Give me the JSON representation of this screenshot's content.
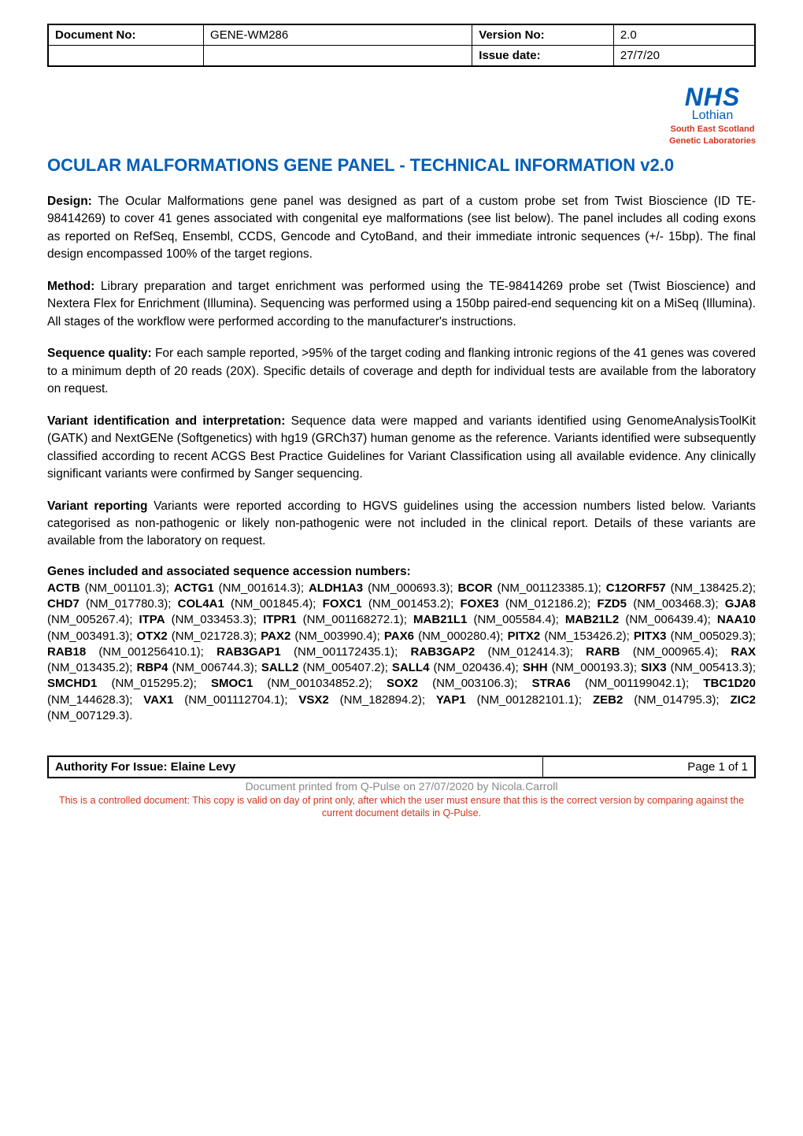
{
  "header": {
    "doc_no_label": "Document No:",
    "doc_no": "GENE-WM286",
    "version_no_label": "Version No:",
    "version_no": "2.0",
    "issue_date_label": "Issue date:",
    "issue_date": "27/7/20"
  },
  "logo": {
    "nhs": "NHS",
    "lothian": "Lothian",
    "sub1": "South East Scotland",
    "sub2": "Genetic Laboratories",
    "nhs_color": "#005eb8",
    "sub_color": "#d4351c"
  },
  "title": "OCULAR MALFORMATIONS GENE PANEL - TECHNICAL INFORMATION  v2.0",
  "sections": {
    "design_label": "Design:",
    "design_text": " The Ocular Malformations gene panel was designed as part of a custom probe set from Twist Bioscience (ID TE-98414269) to cover 41 genes associated with congenital eye malformations (see list below). The panel includes all coding exons as reported on RefSeq, Ensembl, CCDS, Gencode and CytoBand, and their immediate intronic sequences (+/- 15bp). The final design encompassed 100% of the target regions.",
    "method_label": "Method:",
    "method_text": " Library preparation and target enrichment was performed using the TE-98414269 probe set (Twist Bioscience) and Nextera Flex for Enrichment (Illumina). Sequencing was performed using a 150bp paired-end sequencing kit on a MiSeq (Illumina). All stages of the workflow were performed according to the manufacturer's instructions.",
    "seq_label": "Sequence quality:",
    "seq_text": " For each sample reported, >95% of the target coding and flanking intronic regions of the 41 genes was covered to a minimum depth of 20 reads (20X). Specific details of coverage and depth for individual tests are available from the laboratory on request.",
    "variant_id_label": "Variant identification and interpretation:",
    "variant_id_text": " Sequence data were mapped and variants identified using GenomeAnalysisToolKit (GATK) and NextGENe (Softgenetics) with hg19 (GRCh37) human genome as the reference. Variants identified were subsequently classified according to recent ACGS Best Practice Guidelines for Variant Classification using all available evidence. Any clinically significant variants were confirmed by Sanger sequencing.",
    "variant_rep_label": "Variant reporting",
    "variant_rep_text": " Variants were reported according to HGVS guidelines using the accession numbers listed below. Variants categorised as non-pathogenic or likely non-pathogenic were not included in the clinical report. Details of these variants are available from the laboratory on request."
  },
  "genes_heading": "Genes included and associated sequence accession numbers:",
  "genes": [
    {
      "g": "ACTB",
      "a": "(NM_001101.3)"
    },
    {
      "g": "ACTG1",
      "a": "(NM_001614.3)"
    },
    {
      "g": "ALDH1A3",
      "a": "(NM_000693.3)"
    },
    {
      "g": "BCOR",
      "a": "(NM_001123385.1)"
    },
    {
      "g": "C12ORF57",
      "a": "(NM_138425.2)"
    },
    {
      "g": "CHD7",
      "a": "(NM_017780.3)"
    },
    {
      "g": "COL4A1",
      "a": "(NM_001845.4)"
    },
    {
      "g": "FOXC1",
      "a": "(NM_001453.2)"
    },
    {
      "g": "FOXE3",
      "a": "(NM_012186.2)"
    },
    {
      "g": "FZD5",
      "a": "(NM_003468.3)"
    },
    {
      "g": "GJA8",
      "a": "(NM_005267.4)"
    },
    {
      "g": "ITPA",
      "a": "(NM_033453.3)"
    },
    {
      "g": "ITPR1",
      "a": "(NM_001168272.1)"
    },
    {
      "g": "MAB21L1",
      "a": "(NM_005584.4)"
    },
    {
      "g": "MAB21L2",
      "a": "(NM_006439.4)"
    },
    {
      "g": "NAA10",
      "a": "(NM_003491.3)"
    },
    {
      "g": "OTX2",
      "a": "(NM_021728.3)"
    },
    {
      "g": "PAX2",
      "a": "(NM_003990.4)"
    },
    {
      "g": "PAX6",
      "a": "(NM_000280.4)"
    },
    {
      "g": "PITX2",
      "a": "(NM_153426.2)"
    },
    {
      "g": "PITX3",
      "a": "(NM_005029.3)"
    },
    {
      "g": "RAB18",
      "a": "(NM_001256410.1)"
    },
    {
      "g": "RAB3GAP1",
      "a": "(NM_001172435.1)"
    },
    {
      "g": "RAB3GAP2",
      "a": "(NM_012414.3)"
    },
    {
      "g": "RARB",
      "a": "(NM_000965.4)"
    },
    {
      "g": "RAX",
      "a": "(NM_013435.2)"
    },
    {
      "g": "RBP4",
      "a": "(NM_006744.3)"
    },
    {
      "g": "SALL2",
      "a": "(NM_005407.2)"
    },
    {
      "g": "SALL4",
      "a": "(NM_020436.4)"
    },
    {
      "g": "SHH",
      "a": "(NM_000193.3)"
    },
    {
      "g": "SIX3",
      "a": "(NM_005413.3)"
    },
    {
      "g": "SMCHD1",
      "a": "(NM_015295.2)"
    },
    {
      "g": "SMOC1",
      "a": "(NM_001034852.2)"
    },
    {
      "g": "SOX2",
      "a": "(NM_003106.3)"
    },
    {
      "g": "STRA6",
      "a": "(NM_001199042.1)"
    },
    {
      "g": "TBC1D20",
      "a": "(NM_144628.3)"
    },
    {
      "g": "VAX1",
      "a": "(NM_001112704.1)"
    },
    {
      "g": "VSX2",
      "a": "(NM_182894.2)"
    },
    {
      "g": "YAP1",
      "a": "(NM_001282101.1)"
    },
    {
      "g": "ZEB2",
      "a": "(NM_014795.3)"
    },
    {
      "g": "ZIC2",
      "a": "(NM_007129.3)"
    }
  ],
  "footer": {
    "authority_label": "Authority For Issue: Elaine Levy",
    "page": "Page 1 of 1",
    "printed": "Document printed from Q-Pulse on 27/07/2020 by Nicola.Carroll",
    "disclaimer": "This is a controlled document: This copy is valid on day of print only, after which the user must ensure that this is the correct version by comparing against the current document details in Q-Pulse."
  },
  "styling": {
    "title_color": "#005eb8",
    "title_fontsize": 22,
    "body_fontsize": 15.5,
    "body_lineheight": 1.45,
    "genes_fontsize": 15,
    "footer_grey": "#888888",
    "disclaimer_color": "#d4351c",
    "border_color": "#000000",
    "background_color": "#ffffff"
  }
}
